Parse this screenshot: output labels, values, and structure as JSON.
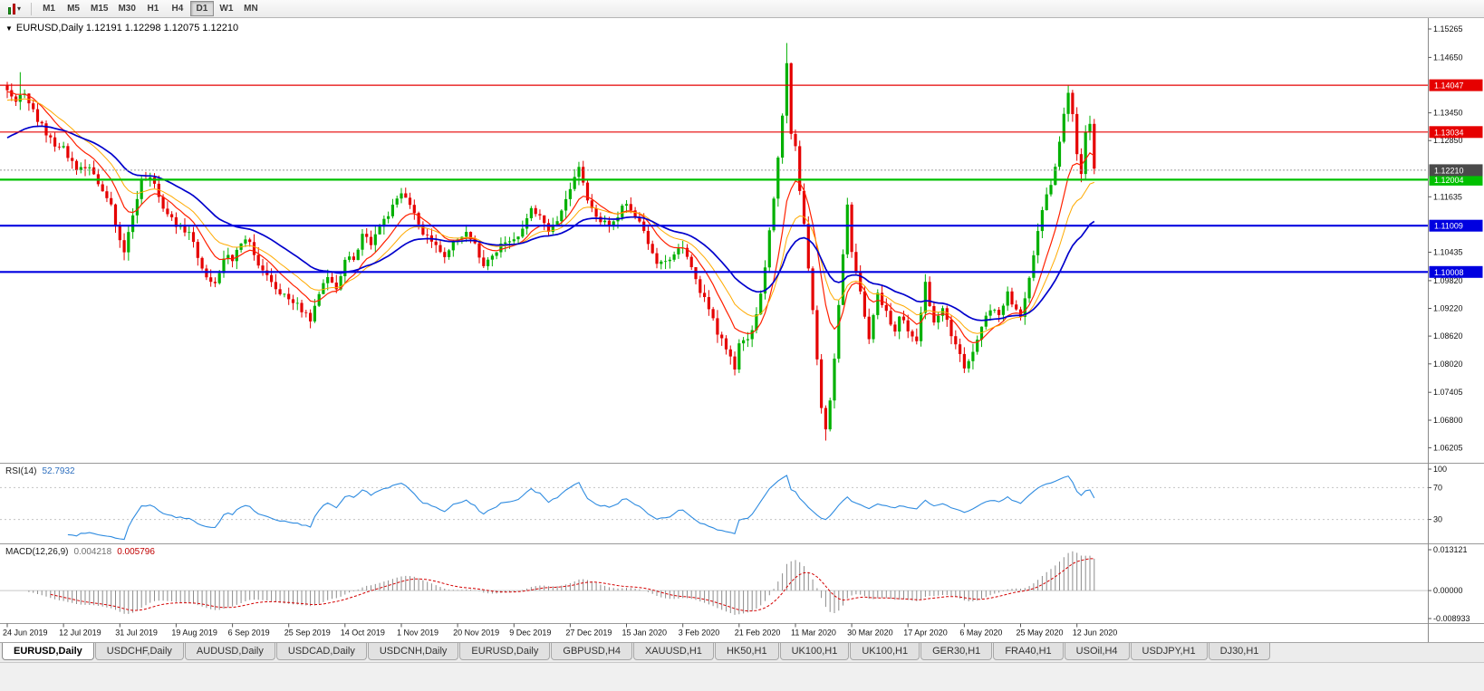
{
  "toolbar": {
    "timeframes": [
      "M1",
      "M5",
      "M15",
      "M30",
      "H1",
      "H4",
      "D1",
      "W1",
      "MN"
    ],
    "active_timeframe": "D1"
  },
  "chart_header": {
    "text": "EURUSD,Daily 1.12191 1.12298 1.12075 1.12210"
  },
  "chart_data": {
    "type": "candlestick",
    "symbol": "EURUSD",
    "timeframe": "Daily",
    "ohlc_display": {
      "open": 1.12191,
      "high": 1.12298,
      "low": 1.12075,
      "close": 1.1221
    },
    "price_axis": {
      "max": 1.1548,
      "min": 1.0588,
      "ticks": [
        1.15265,
        1.1465,
        1.1345,
        1.1285,
        1.11635,
        1.10435,
        1.0982,
        1.0922,
        1.0862,
        1.0802,
        1.07405,
        1.068,
        1.06205
      ]
    },
    "levels": [
      {
        "price": 1.14047,
        "label": "1.14047",
        "color": "#e60000",
        "width": 1.2
      },
      {
        "price": 1.13034,
        "label": "1.13034",
        "color": "#e60000",
        "width": 1.2
      },
      {
        "price": 1.12004,
        "label": "1.12004",
        "color": "#00c000",
        "width": 2.2
      },
      {
        "price": 1.11009,
        "label": "1.11009",
        "color": "#0000e0",
        "width": 2.2
      },
      {
        "price": 1.10008,
        "label": "1.10008",
        "color": "#0000e0",
        "width": 2.2
      }
    ],
    "bid_line": {
      "price": 1.1221,
      "label": "1.12210",
      "line_color": "#9a9a9a",
      "label_bg": "#4a4a4a"
    },
    "candles": {
      "up_color": "#00b000",
      "down_color": "#e50000",
      "count": 252,
      "noise_seed": 9
    },
    "anchors": [
      [
        0,
        1.1392
      ],
      [
        2,
        1.1374
      ],
      [
        4,
        1.1388
      ],
      [
        7,
        1.1332
      ],
      [
        10,
        1.1286
      ],
      [
        13,
        1.1268
      ],
      [
        16,
        1.1221
      ],
      [
        19,
        1.1227
      ],
      [
        22,
        1.1182
      ],
      [
        24,
        1.114
      ],
      [
        26,
        1.1076
      ],
      [
        27,
        1.1042
      ],
      [
        29,
        1.1124
      ],
      [
        31,
        1.1204
      ],
      [
        34,
        1.1196
      ],
      [
        36,
        1.1136
      ],
      [
        39,
        1.1099
      ],
      [
        42,
        1.1086
      ],
      [
        44,
        1.1036
      ],
      [
        46,
        1.0986
      ],
      [
        48,
        1.0976
      ],
      [
        50,
        1.1034
      ],
      [
        52,
        1.1029
      ],
      [
        54,
        1.106
      ],
      [
        56,
        1.1072
      ],
      [
        58,
        1.1016
      ],
      [
        60,
        1.0991
      ],
      [
        62,
        1.0956
      ],
      [
        65,
        1.0941
      ],
      [
        67,
        1.0926
      ],
      [
        69,
        1.0906
      ],
      [
        70,
        1.0896
      ],
      [
        72,
        1.0956
      ],
      [
        74,
        1.0986
      ],
      [
        76,
        1.0966
      ],
      [
        78,
        1.1028
      ],
      [
        80,
        1.1026
      ],
      [
        82,
        1.1076
      ],
      [
        84,
        1.1066
      ],
      [
        86,
        1.1106
      ],
      [
        88,
        1.1126
      ],
      [
        91,
        1.1166
      ],
      [
        93,
        1.1141
      ],
      [
        95,
        1.1101
      ],
      [
        97,
        1.1076
      ],
      [
        99,
        1.1056
      ],
      [
        101,
        1.1036
      ],
      [
        104,
        1.1074
      ],
      [
        106,
        1.1081
      ],
      [
        108,
        1.1056
      ],
      [
        110,
        1.1016
      ],
      [
        112,
        1.1036
      ],
      [
        114,
        1.1061
      ],
      [
        117,
        1.1064
      ],
      [
        119,
        1.1096
      ],
      [
        121,
        1.1136
      ],
      [
        123,
        1.1121
      ],
      [
        125,
        1.1086
      ],
      [
        127,
        1.1116
      ],
      [
        130,
        1.1175
      ],
      [
        132,
        1.1226
      ],
      [
        134,
        1.1161
      ],
      [
        136,
        1.1126
      ],
      [
        138,
        1.1106
      ],
      [
        140,
        1.1111
      ],
      [
        143,
        1.1151
      ],
      [
        145,
        1.1126
      ],
      [
        147,
        1.1086
      ],
      [
        149,
        1.1036
      ],
      [
        151,
        1.1016
      ],
      [
        153,
        1.1031
      ],
      [
        156,
        1.1061
      ],
      [
        158,
        1.1006
      ],
      [
        160,
        1.0961
      ],
      [
        162,
        1.0916
      ],
      [
        164,
        1.0871
      ],
      [
        166,
        1.0836
      ],
      [
        168,
        1.0791
      ],
      [
        169,
        1.0846
      ],
      [
        171,
        1.0856
      ],
      [
        173,
        1.0906
      ],
      [
        175,
        1.1011
      ],
      [
        177,
        1.1161
      ],
      [
        179,
        1.1331
      ],
      [
        180,
        1.1448
      ],
      [
        181,
        1.1301
      ],
      [
        182,
        1.1271
      ],
      [
        183,
        1.1181
      ],
      [
        184,
        1.1101
      ],
      [
        185,
        1.1011
      ],
      [
        186,
        1.0921
      ],
      [
        187,
        1.0811
      ],
      [
        188,
        1.0701
      ],
      [
        189,
        1.0661
      ],
      [
        190,
        1.0726
      ],
      [
        191,
        1.0821
      ],
      [
        192,
        1.0931
      ],
      [
        193,
        1.1031
      ],
      [
        194,
        1.1141
      ],
      [
        195,
        1.1048
      ],
      [
        196,
        1.0991
      ],
      [
        197,
        1.0961
      ],
      [
        198,
        1.0906
      ],
      [
        199,
        1.0856
      ],
      [
        200,
        1.0906
      ],
      [
        201,
        1.0956
      ],
      [
        202,
        1.0931
      ],
      [
        203,
        1.0911
      ],
      [
        204,
        1.0886
      ],
      [
        205,
        1.0866
      ],
      [
        206,
        1.0906
      ],
      [
        208,
        1.0875
      ],
      [
        210,
        1.0856
      ],
      [
        212,
        1.0976
      ],
      [
        214,
        1.0891
      ],
      [
        216,
        1.0916
      ],
      [
        218,
        1.0866
      ],
      [
        220,
        1.0821
      ],
      [
        221,
        1.0795
      ],
      [
        223,
        1.0826
      ],
      [
        225,
        1.0881
      ],
      [
        227,
        1.0921
      ],
      [
        229,
        1.0901
      ],
      [
        231,
        1.0951
      ],
      [
        233,
        1.0921
      ],
      [
        234,
        1.0897
      ],
      [
        236,
        1.0981
      ],
      [
        238,
        1.1096
      ],
      [
        240,
        1.1166
      ],
      [
        242,
        1.1221
      ],
      [
        244,
        1.1336
      ],
      [
        245,
        1.1386
      ],
      [
        246,
        1.1341
      ],
      [
        247,
        1.1256
      ],
      [
        248,
        1.1216
      ],
      [
        249,
        1.1306
      ],
      [
        250,
        1.1321
      ],
      [
        251,
        1.1221
      ]
    ],
    "wick_overrides": [
      [
        0,
        "high",
        1.1412
      ],
      [
        3,
        "high",
        1.1433
      ],
      [
        27,
        "low",
        1.1026
      ],
      [
        70,
        "low",
        1.0879
      ],
      [
        132,
        "high",
        1.1239
      ],
      [
        168,
        "low",
        1.0777
      ],
      [
        180,
        "high",
        1.1496
      ],
      [
        189,
        "low",
        1.0636
      ],
      [
        245,
        "high",
        1.1404
      ]
    ],
    "moving_averages": [
      {
        "name": "ma-fast",
        "period": 10,
        "color": "#ff2000",
        "width": 1.2,
        "seed": 1.139
      },
      {
        "name": "ma-mid",
        "period": 18,
        "color": "#ffaa00",
        "width": 1.0,
        "seed": 1.137
      },
      {
        "name": "ma-slow",
        "period": 34,
        "color": "#0000cc",
        "width": 1.7,
        "seed": 1.1285
      }
    ],
    "x_axis": {
      "labels": [
        "24 Jun 2019",
        "12 Jul 2019",
        "31 Jul 2019",
        "19 Aug 2019",
        "6 Sep 2019",
        "25 Sep 2019",
        "14 Oct 2019",
        "1 Nov 2019",
        "20 Nov 2019",
        "9 Dec 2019",
        "27 Dec 2019",
        "15 Jan 2020",
        "3 Feb 2020",
        "21 Feb 2020",
        "11 Mar 2020",
        "30 Mar 2020",
        "17 Apr 2020",
        "6 May 2020",
        "25 May 2020",
        "12 Jun 2020"
      ],
      "candles_per_label": 13
    },
    "rsi": {
      "label": "RSI(14)",
      "value": "52.7932",
      "period": 14,
      "color": "#2e8be0",
      "axis_labels": [
        100,
        70,
        30
      ],
      "upper": 70,
      "lower": 30
    },
    "macd": {
      "label": "MACD(12,26,9)",
      "value_main": "0.004218",
      "value_signal": "0.005796",
      "fast": 12,
      "slow": 26,
      "signal": 9,
      "hist_color": "#8c8c8c",
      "signal_color": "#d40000",
      "axis_labels": [
        "0.013121",
        "0.00000",
        "-0.008933"
      ],
      "range": [
        -0.0095,
        0.0135
      ]
    }
  },
  "tabs": {
    "items": [
      "EURUSD,Daily",
      "USDCHF,Daily",
      "AUDUSD,Daily",
      "USDCAD,Daily",
      "USDCNH,Daily",
      "EURUSD,Daily",
      "GBPUSD,H4",
      "XAUUSD,H1",
      "HK50,H1",
      "UK100,H1",
      "UK100,H1",
      "GER30,H1",
      "FRA40,H1",
      "USOil,H4",
      "USDJPY,H1",
      "DJ30,H1"
    ],
    "active_index": 0
  }
}
